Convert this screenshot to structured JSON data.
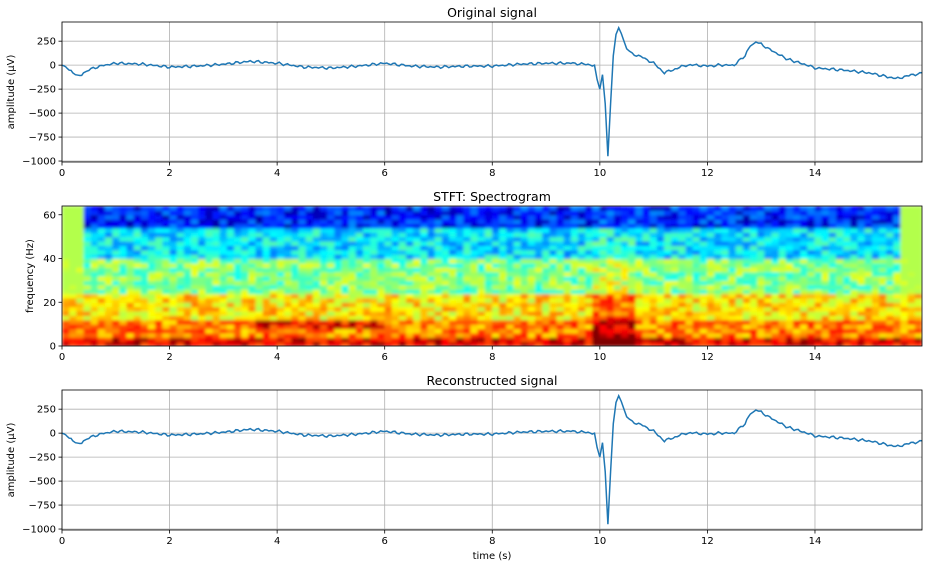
{
  "chart_data": [
    {
      "type": "line",
      "title": "Original signal",
      "xlabel": "",
      "ylabel": "amplitude (µV)",
      "xlim": [
        0,
        15.99
      ],
      "ylim": [
        -1010,
        450
      ],
      "xticks": [
        0,
        2,
        4,
        6,
        8,
        10,
        12,
        14
      ],
      "xtick_labels": [
        "0",
        "2",
        "4",
        "6",
        "8",
        "10",
        "12",
        "14"
      ],
      "yticks": [
        250,
        0,
        -250,
        -500,
        -750,
        -1000
      ],
      "ytick_labels": [
        "250",
        "0",
        "−250",
        "−500",
        "−750",
        "−1000"
      ],
      "grid": true,
      "line_color": "#1f77b4",
      "series": [
        {
          "x": [
            0,
            0.1,
            0.2,
            0.3,
            0.4,
            0.5,
            0.7,
            1.0,
            1.5,
            2.0,
            2.5,
            3.0,
            3.5,
            4.0,
            4.5,
            5.0,
            5.5,
            6.0,
            6.5,
            7.0,
            7.5,
            8.0,
            8.5,
            9.0,
            9.5,
            9.9,
            9.95,
            10.0,
            10.05,
            10.1,
            10.15,
            10.2,
            10.25,
            10.3,
            10.35,
            10.4,
            10.45,
            10.5,
            10.6,
            10.8,
            11.0,
            11.2,
            11.4,
            11.6,
            11.8,
            12.0,
            12.2,
            12.5,
            12.7,
            12.8,
            12.9,
            13.0,
            13.2,
            13.5,
            13.8,
            14.0,
            14.5,
            15.0,
            15.5,
            15.99
          ],
          "y": [
            0,
            -30,
            -80,
            -120,
            -80,
            -50,
            -10,
            20,
            10,
            -20,
            -10,
            10,
            40,
            20,
            -20,
            -30,
            -10,
            20,
            -10,
            -20,
            -10,
            -10,
            10,
            20,
            20,
            0,
            -150,
            -250,
            -100,
            -400,
            -950,
            -400,
            100,
            320,
            390,
            330,
            250,
            170,
            120,
            80,
            20,
            -80,
            -40,
            0,
            0,
            -10,
            0,
            0,
            100,
            200,
            240,
            220,
            150,
            60,
            10,
            -30,
            -50,
            -80,
            -140,
            -80
          ]
        }
      ]
    },
    {
      "type": "heatmap",
      "title": "STFT: Spectrogram",
      "xlabel": "",
      "ylabel": "frequency (Hz)",
      "xlim": [
        0,
        15.99
      ],
      "ylim": [
        0,
        64
      ],
      "xticks": [
        0,
        2,
        4,
        6,
        8,
        10,
        12,
        14
      ],
      "xtick_labels": [
        "0",
        "2",
        "4",
        "6",
        "8",
        "10",
        "12",
        "14"
      ],
      "yticks": [
        0,
        20,
        40,
        60
      ],
      "ytick_labels": [
        "0",
        "20",
        "40",
        "60"
      ],
      "colormap": "jet",
      "grid": false,
      "description_levels": [
        {
          "f": [
            0,
            5
          ],
          "level": 0.9
        },
        {
          "f": [
            5,
            12
          ],
          "level": 0.75
        },
        {
          "f": [
            12,
            25
          ],
          "level": 0.65
        },
        {
          "f": [
            25,
            40
          ],
          "level": 0.5
        },
        {
          "f": [
            40,
            55
          ],
          "level": 0.35
        },
        {
          "f": [
            55,
            64
          ],
          "level": 0.15
        }
      ]
    },
    {
      "type": "line",
      "title": "Reconstructed signal",
      "xlabel": "time (s)",
      "ylabel": "amplitude (µV)",
      "xlim": [
        0,
        15.99
      ],
      "ylim": [
        -1010,
        450
      ],
      "xticks": [
        0,
        2,
        4,
        6,
        8,
        10,
        12,
        14
      ],
      "xtick_labels": [
        "0",
        "2",
        "4",
        "6",
        "8",
        "10",
        "12",
        "14"
      ],
      "yticks": [
        250,
        0,
        -250,
        -500,
        -750,
        -1000
      ],
      "ytick_labels": [
        "250",
        "0",
        "−250",
        "−500",
        "−750",
        "−1000"
      ],
      "grid": true,
      "line_color": "#1f77b4",
      "series": [
        {
          "x": [
            0,
            0.1,
            0.2,
            0.3,
            0.4,
            0.5,
            0.7,
            1.0,
            1.5,
            2.0,
            2.5,
            3.0,
            3.5,
            4.0,
            4.5,
            5.0,
            5.5,
            6.0,
            6.5,
            7.0,
            7.5,
            8.0,
            8.5,
            9.0,
            9.5,
            9.9,
            9.95,
            10.0,
            10.05,
            10.1,
            10.15,
            10.2,
            10.25,
            10.3,
            10.35,
            10.4,
            10.45,
            10.5,
            10.6,
            10.8,
            11.0,
            11.2,
            11.4,
            11.6,
            11.8,
            12.0,
            12.2,
            12.5,
            12.7,
            12.8,
            12.9,
            13.0,
            13.2,
            13.5,
            13.8,
            14.0,
            14.5,
            15.0,
            15.5,
            15.99
          ],
          "y": [
            0,
            -30,
            -80,
            -120,
            -80,
            -50,
            -10,
            20,
            10,
            -20,
            -10,
            10,
            40,
            20,
            -20,
            -30,
            -10,
            20,
            -10,
            -20,
            -10,
            -10,
            10,
            20,
            20,
            0,
            -150,
            -250,
            -100,
            -400,
            -950,
            -400,
            100,
            320,
            390,
            330,
            250,
            170,
            120,
            80,
            20,
            -80,
            -40,
            0,
            0,
            -10,
            0,
            0,
            100,
            200,
            240,
            220,
            150,
            60,
            10,
            -30,
            -50,
            -80,
            -140,
            -80
          ]
        }
      ]
    }
  ]
}
